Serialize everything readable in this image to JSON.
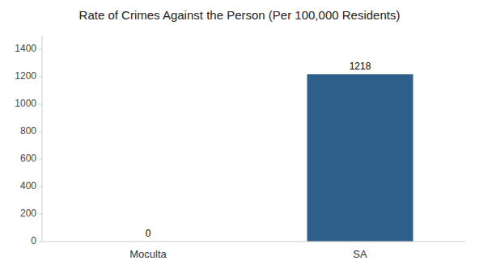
{
  "chart_data": {
    "type": "bar",
    "title": "Rate of Crimes Against the Person (Per 100,000 Residents)",
    "categories": [
      "Moculta",
      "SA"
    ],
    "values": [
      0,
      1218
    ],
    "colors": [
      "#3d6694",
      "#2e5f8a"
    ],
    "ylim": [
      0,
      1500
    ],
    "yticks": [
      0,
      200,
      400,
      600,
      800,
      1000,
      1200,
      1400
    ],
    "grid": false,
    "data_labels": true
  }
}
